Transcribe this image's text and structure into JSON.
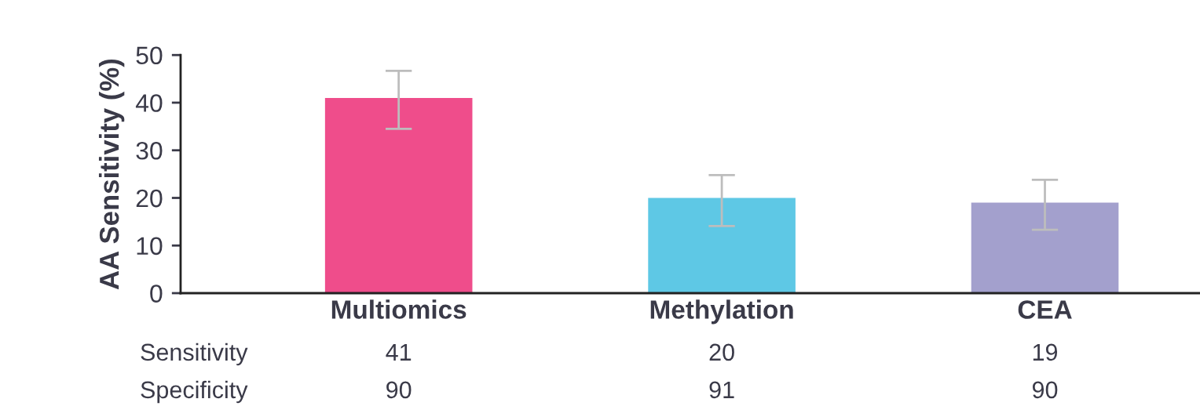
{
  "chart_data": {
    "type": "bar",
    "ylabel": "AA Sensitivity (%)",
    "categories": [
      "Multiomics",
      "Methylation",
      "CEA"
    ],
    "series": [
      {
        "name": "Sensitivity",
        "colors": [
          "#ef4d8b",
          "#5ec8e5",
          "#a3a0cd"
        ],
        "values": [
          41,
          20,
          19
        ],
        "errors": [
          [
            34.5,
            46.7
          ],
          [
            14.1,
            24.8
          ],
          [
            13.3,
            23.8
          ]
        ]
      }
    ],
    "data_labels": true,
    "annotations": [
      "Specificity",
      "90",
      "91",
      "90"
    ],
    "ylim": [
      0,
      50
    ],
    "yticks": [
      0,
      10,
      20,
      30,
      40,
      50
    ],
    "grid": false,
    "legend": false
  }
}
